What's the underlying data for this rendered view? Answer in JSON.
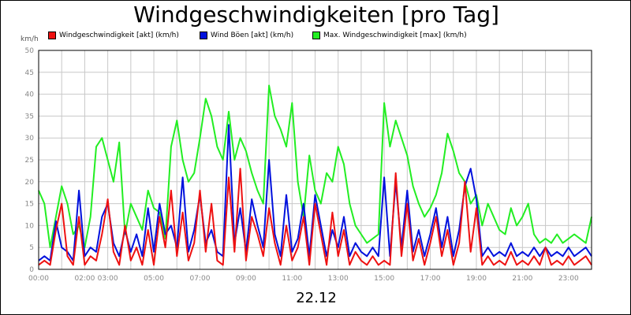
{
  "chart_data": {
    "type": "line",
    "title": "Windgeschwindigkeiten [pro Tag]",
    "unit_label": "km/h",
    "date_label": "22.12",
    "ylim": [
      0,
      50
    ],
    "y_ticks": [
      0,
      5,
      10,
      15,
      20,
      25,
      30,
      35,
      40,
      45,
      50
    ],
    "x_range_hours": [
      0,
      24
    ],
    "x_ticks": [
      {
        "hour": 0,
        "label": "00:00"
      },
      {
        "hour": 2,
        "label": "02:00"
      },
      {
        "hour": 3,
        "label": "03:00"
      },
      {
        "hour": 5,
        "label": "05:00"
      },
      {
        "hour": 7,
        "label": "07:00"
      },
      {
        "hour": 9,
        "label": "09:00"
      },
      {
        "hour": 11,
        "label": "11:00"
      },
      {
        "hour": 13,
        "label": "13:00"
      },
      {
        "hour": 15,
        "label": "15:00"
      },
      {
        "hour": 17,
        "label": "17:00"
      },
      {
        "hour": 19,
        "label": "19:00"
      },
      {
        "hour": 21,
        "label": "21:00"
      },
      {
        "hour": 23,
        "label": "23:00"
      }
    ],
    "grid": true,
    "legend_position": "top",
    "series": [
      {
        "name": "Windgeschwindigkeit [akt] (km/h)",
        "color": "#ee1111",
        "x": [
          0,
          0.25,
          0.5,
          0.75,
          1,
          1.25,
          1.5,
          1.75,
          2,
          2.25,
          2.5,
          2.75,
          3,
          3.25,
          3.5,
          3.75,
          4,
          4.25,
          4.5,
          4.75,
          5,
          5.25,
          5.5,
          5.75,
          6,
          6.25,
          6.5,
          6.75,
          7,
          7.25,
          7.5,
          7.75,
          8,
          8.25,
          8.5,
          8.75,
          9,
          9.25,
          9.5,
          9.75,
          10,
          10.25,
          10.5,
          10.75,
          11,
          11.25,
          11.5,
          11.75,
          12,
          12.25,
          12.5,
          12.75,
          13,
          13.25,
          13.5,
          13.75,
          14,
          14.25,
          14.5,
          14.75,
          15,
          15.25,
          15.5,
          15.75,
          16,
          16.25,
          16.5,
          16.75,
          17,
          17.25,
          17.5,
          17.75,
          18,
          18.25,
          18.5,
          18.75,
          19,
          19.25,
          19.5,
          19.75,
          20,
          20.25,
          20.5,
          20.75,
          21,
          21.25,
          21.5,
          21.75,
          22,
          22.25,
          22.5,
          22.75,
          23,
          23.25,
          23.5,
          23.75,
          24
        ],
        "values": [
          1,
          2,
          1,
          9,
          15,
          3,
          1,
          12,
          1,
          3,
          2,
          8,
          16,
          4,
          1,
          10,
          2,
          5,
          1,
          9,
          1,
          12,
          5,
          18,
          3,
          13,
          2,
          6,
          18,
          4,
          15,
          2,
          1,
          21,
          4,
          23,
          2,
          12,
          8,
          3,
          14,
          6,
          1,
          10,
          2,
          5,
          12,
          1,
          15,
          8,
          1,
          13,
          3,
          9,
          1,
          4,
          2,
          1,
          3,
          1,
          2,
          1,
          22,
          3,
          15,
          2,
          7,
          1,
          6,
          12,
          3,
          9,
          1,
          6,
          20,
          4,
          14,
          1,
          3,
          1,
          2,
          1,
          4,
          1,
          2,
          1,
          3,
          1,
          5,
          1,
          2,
          1,
          3,
          1,
          2,
          3,
          1
        ]
      },
      {
        "name": "Wind Böen [akt] (km/h)",
        "color": "#0011dd",
        "x": [
          0,
          0.25,
          0.5,
          0.75,
          1,
          1.25,
          1.5,
          1.75,
          2,
          2.25,
          2.5,
          2.75,
          3,
          3.25,
          3.5,
          3.75,
          4,
          4.25,
          4.5,
          4.75,
          5,
          5.25,
          5.5,
          5.75,
          6,
          6.25,
          6.5,
          6.75,
          7,
          7.25,
          7.5,
          7.75,
          8,
          8.25,
          8.5,
          8.75,
          9,
          9.25,
          9.5,
          9.75,
          10,
          10.25,
          10.5,
          10.75,
          11,
          11.25,
          11.5,
          11.75,
          12,
          12.25,
          12.5,
          12.75,
          13,
          13.25,
          13.5,
          13.75,
          14,
          14.25,
          14.5,
          14.75,
          15,
          15.25,
          15.5,
          15.75,
          16,
          16.25,
          16.5,
          16.75,
          17,
          17.25,
          17.5,
          17.75,
          18,
          18.25,
          18.5,
          18.75,
          19,
          19.25,
          19.5,
          19.75,
          20,
          20.25,
          20.5,
          20.75,
          21,
          21.25,
          21.5,
          21.75,
          22,
          22.25,
          22.5,
          22.75,
          23,
          23.25,
          23.5,
          23.75,
          24
        ],
        "values": [
          2,
          3,
          2,
          11,
          5,
          4,
          2,
          18,
          3,
          5,
          4,
          12,
          15,
          6,
          3,
          9,
          4,
          8,
          3,
          14,
          4,
          15,
          8,
          10,
          5,
          21,
          4,
          9,
          17,
          6,
          9,
          4,
          3,
          33,
          6,
          14,
          4,
          16,
          10,
          5,
          25,
          8,
          3,
          17,
          4,
          7,
          15,
          3,
          17,
          10,
          3,
          9,
          5,
          12,
          3,
          6,
          4,
          3,
          5,
          3,
          21,
          3,
          20,
          5,
          18,
          4,
          9,
          3,
          8,
          14,
          5,
          12,
          3,
          9,
          19,
          23,
          16,
          3,
          5,
          3,
          4,
          3,
          6,
          3,
          4,
          3,
          5,
          3,
          5,
          3,
          4,
          3,
          5,
          3,
          4,
          5,
          3
        ]
      },
      {
        "name": "Max. Windgeschwindigkeit [max] (km/h)",
        "color": "#22ee22",
        "x": [
          0,
          0.25,
          0.5,
          0.75,
          1,
          1.25,
          1.5,
          1.75,
          2,
          2.25,
          2.5,
          2.75,
          3,
          3.25,
          3.5,
          3.75,
          4,
          4.25,
          4.5,
          4.75,
          5,
          5.25,
          5.5,
          5.75,
          6,
          6.25,
          6.5,
          6.75,
          7,
          7.25,
          7.5,
          7.75,
          8,
          8.25,
          8.5,
          8.75,
          9,
          9.25,
          9.5,
          9.75,
          10,
          10.25,
          10.5,
          10.75,
          11,
          11.25,
          11.5,
          11.75,
          12,
          12.25,
          12.5,
          12.75,
          13,
          13.25,
          13.5,
          13.75,
          14,
          14.25,
          14.5,
          14.75,
          15,
          15.25,
          15.5,
          15.75,
          16,
          16.25,
          16.5,
          16.75,
          17,
          17.25,
          17.5,
          17.75,
          18,
          18.25,
          18.5,
          18.75,
          19,
          19.25,
          19.5,
          19.75,
          20,
          20.25,
          20.5,
          20.75,
          21,
          21.25,
          21.5,
          21.75,
          22,
          22.25,
          22.5,
          22.75,
          23,
          23.25,
          23.5,
          23.75,
          24
        ],
        "values": [
          18,
          15,
          5,
          12,
          19,
          15,
          8,
          10,
          5,
          12,
          28,
          30,
          25,
          20,
          29,
          8,
          15,
          12,
          9,
          18,
          14,
          13,
          7,
          28,
          34,
          25,
          20,
          22,
          30,
          39,
          35,
          28,
          25,
          36,
          25,
          30,
          27,
          22,
          18,
          15,
          42,
          35,
          32,
          28,
          38,
          20,
          12,
          26,
          18,
          15,
          22,
          20,
          28,
          24,
          15,
          10,
          8,
          6,
          7,
          8,
          38,
          28,
          34,
          30,
          26,
          19,
          15,
          12,
          14,
          17,
          22,
          31,
          27,
          22,
          20,
          15,
          17,
          10,
          15,
          12,
          9,
          8,
          14,
          10,
          12,
          15,
          8,
          6,
          7,
          6,
          8,
          6,
          7,
          8,
          7,
          6,
          12
        ]
      }
    ]
  }
}
